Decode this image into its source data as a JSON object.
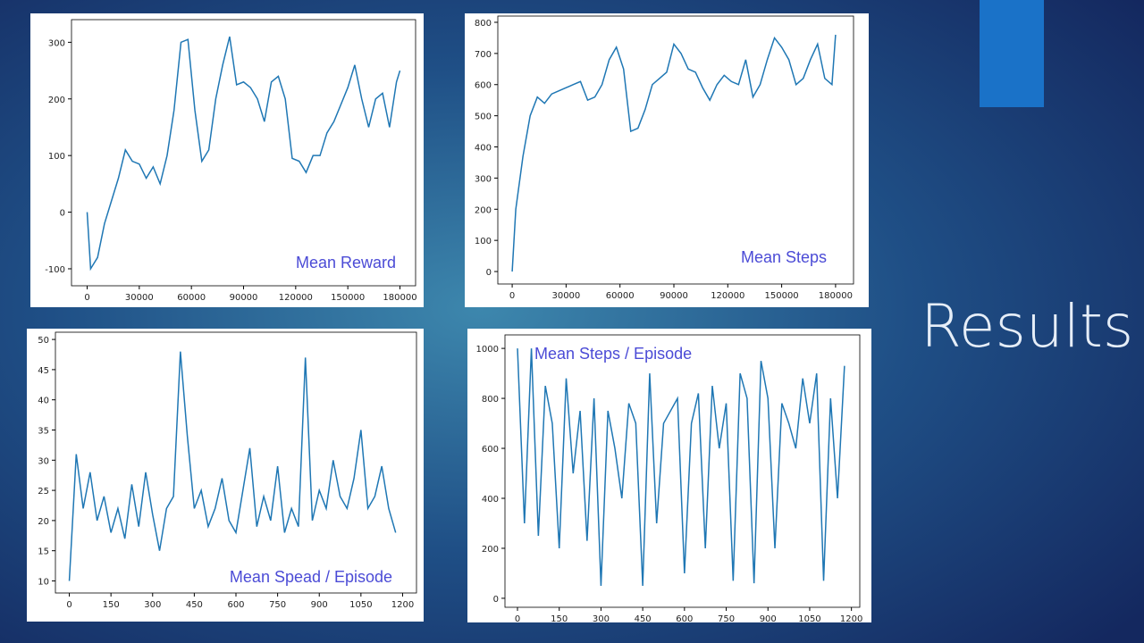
{
  "title": "Results",
  "chart_data": [
    {
      "type": "line",
      "annotation": "Mean Reward",
      "color": "#1f77b4",
      "x": [
        0,
        2000,
        6000,
        10000,
        14000,
        18000,
        22000,
        26000,
        30000,
        34000,
        38000,
        42000,
        46000,
        50000,
        54000,
        58000,
        62000,
        66000,
        70000,
        74000,
        78000,
        82000,
        86000,
        90000,
        94000,
        98000,
        102000,
        106000,
        110000,
        114000,
        118000,
        122000,
        126000,
        130000,
        134000,
        138000,
        142000,
        146000,
        150000,
        154000,
        158000,
        162000,
        166000,
        170000,
        174000,
        178000,
        180000
      ],
      "values": [
        0,
        -100,
        -80,
        -20,
        20,
        60,
        110,
        90,
        85,
        60,
        80,
        50,
        100,
        180,
        300,
        305,
        180,
        90,
        110,
        200,
        260,
        310,
        225,
        230,
        220,
        200,
        160,
        230,
        240,
        200,
        95,
        90,
        70,
        100,
        100,
        140,
        160,
        190,
        220,
        260,
        200,
        150,
        200,
        210,
        150,
        230,
        250
      ],
      "xlim": [
        -9000,
        189000
      ],
      "ylim": [
        -130,
        340
      ],
      "xticks": [
        0,
        30000,
        60000,
        90000,
        120000,
        150000,
        180000
      ],
      "yticks": [
        -100,
        0,
        100,
        200,
        300
      ]
    },
    {
      "type": "line",
      "annotation": "Mean Steps",
      "color": "#1f77b4",
      "x": [
        0,
        2000,
        6000,
        10000,
        14000,
        18000,
        22000,
        26000,
        30000,
        34000,
        38000,
        42000,
        46000,
        50000,
        54000,
        58000,
        62000,
        66000,
        70000,
        74000,
        78000,
        82000,
        86000,
        90000,
        94000,
        98000,
        102000,
        106000,
        110000,
        114000,
        118000,
        122000,
        126000,
        130000,
        134000,
        138000,
        142000,
        146000,
        150000,
        154000,
        158000,
        162000,
        166000,
        170000,
        174000,
        178000,
        180000
      ],
      "values": [
        0,
        200,
        370,
        500,
        560,
        540,
        570,
        580,
        590,
        600,
        610,
        550,
        560,
        600,
        680,
        720,
        650,
        450,
        460,
        520,
        600,
        620,
        640,
        730,
        700,
        650,
        640,
        590,
        550,
        600,
        630,
        610,
        600,
        680,
        560,
        600,
        680,
        750,
        720,
        680,
        600,
        620,
        680,
        730,
        620,
        600,
        760
      ],
      "xlim": [
        -8000,
        190000
      ],
      "ylim": [
        -40,
        820
      ],
      "xticks": [
        0,
        30000,
        60000,
        90000,
        120000,
        150000,
        180000
      ],
      "yticks": [
        0,
        100,
        200,
        300,
        400,
        500,
        600,
        700,
        800
      ]
    },
    {
      "type": "line",
      "annotation": "Mean Spead / Episode",
      "color": "#1f77b4",
      "x": [
        0,
        25,
        50,
        75,
        100,
        125,
        150,
        175,
        200,
        225,
        250,
        275,
        300,
        325,
        350,
        375,
        400,
        425,
        450,
        475,
        500,
        525,
        550,
        575,
        600,
        625,
        650,
        675,
        700,
        725,
        750,
        775,
        800,
        825,
        850,
        875,
        900,
        925,
        950,
        975,
        1000,
        1025,
        1050,
        1075,
        1100,
        1125,
        1150,
        1175
      ],
      "values": [
        10,
        31,
        22,
        28,
        20,
        24,
        18,
        22,
        17,
        26,
        19,
        28,
        21,
        15,
        22,
        24,
        48,
        34,
        22,
        25,
        19,
        22,
        27,
        20,
        18,
        25,
        32,
        19,
        24,
        20,
        29,
        18,
        22,
        19,
        47,
        20,
        25,
        22,
        30,
        24,
        22,
        27,
        35,
        22,
        24,
        29,
        22,
        18
      ],
      "xlim": [
        -50,
        1250
      ],
      "ylim": [
        8,
        51.2
      ],
      "xticks": [
        0,
        150,
        300,
        450,
        600,
        750,
        900,
        1050,
        1200
      ],
      "yticks": [
        10,
        15,
        20,
        25,
        30,
        35,
        40,
        45,
        50
      ]
    },
    {
      "type": "line",
      "annotation": "Mean Steps / Episode",
      "color": "#1f77b4",
      "x": [
        0,
        25,
        50,
        75,
        100,
        125,
        150,
        175,
        200,
        225,
        250,
        275,
        300,
        325,
        350,
        375,
        400,
        425,
        450,
        475,
        500,
        525,
        550,
        575,
        600,
        625,
        650,
        675,
        700,
        725,
        750,
        775,
        800,
        825,
        850,
        875,
        900,
        925,
        950,
        975,
        1000,
        1025,
        1050,
        1075,
        1100,
        1125,
        1150,
        1175
      ],
      "values": [
        1000,
        300,
        1000,
        250,
        850,
        700,
        200,
        880,
        500,
        750,
        230,
        800,
        50,
        750,
        600,
        400,
        780,
        700,
        50,
        900,
        300,
        700,
        750,
        800,
        100,
        700,
        820,
        200,
        850,
        600,
        780,
        70,
        900,
        800,
        60,
        950,
        800,
        200,
        780,
        700,
        600,
        880,
        700,
        900,
        70,
        800,
        400,
        930
      ],
      "xlim": [
        -45,
        1230
      ],
      "ylim": [
        -36,
        1054
      ],
      "xticks": [
        0,
        150,
        300,
        450,
        600,
        750,
        900,
        1050,
        1200
      ],
      "yticks": [
        0,
        200,
        400,
        600,
        800,
        1000
      ]
    }
  ]
}
